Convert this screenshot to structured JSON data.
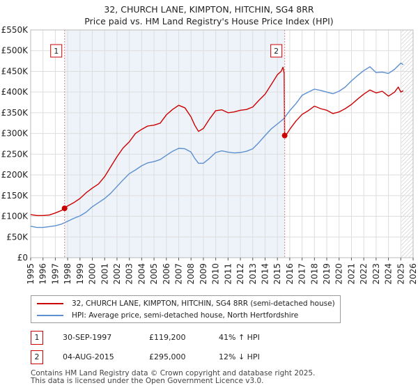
{
  "header": {
    "title_line1": "32, CHURCH LANE, KIMPTON, HITCHIN, SG4 8RR",
    "title_line2": "Price paid vs. HM Land Registry's House Price Index (HPI)"
  },
  "chart_data": {
    "type": "line",
    "title": "32, CHURCH LANE, KIMPTON, HITCHIN, SG4 8RR — Price paid vs. HM Land Registry's House Price Index (HPI)",
    "xlim": [
      1995,
      2026
    ],
    "ylim": [
      0,
      550000
    ],
    "x_ticks": [
      1995,
      1996,
      1997,
      1998,
      1999,
      2000,
      2001,
      2002,
      2003,
      2004,
      2005,
      2006,
      2007,
      2008,
      2009,
      2010,
      2011,
      2012,
      2013,
      2014,
      2015,
      2016,
      2017,
      2018,
      2019,
      2020,
      2021,
      2022,
      2023,
      2024,
      2025,
      2026
    ],
    "y_ticks": [
      {
        "value": 0,
        "label": "£0"
      },
      {
        "value": 50000,
        "label": "£50K"
      },
      {
        "value": 100000,
        "label": "£100K"
      },
      {
        "value": 150000,
        "label": "£150K"
      },
      {
        "value": 200000,
        "label": "£200K"
      },
      {
        "value": 250000,
        "label": "£250K"
      },
      {
        "value": 300000,
        "label": "£300K"
      },
      {
        "value": 350000,
        "label": "£350K"
      },
      {
        "value": 400000,
        "label": "£400K"
      },
      {
        "value": 450000,
        "label": "£450K"
      },
      {
        "value": 500000,
        "label": "£500K"
      },
      {
        "value": 550000,
        "label": "£550K"
      }
    ],
    "grid": true,
    "colors": {
      "property": "#cc0000",
      "hpi": "#5b8fd0",
      "band": "#eef3fa",
      "marker_line": "#e08080",
      "hatch": "#bbbbbb"
    },
    "future_hatch_from": 2025.05,
    "series": [
      {
        "name": "32, CHURCH LANE, KIMPTON, HITCHIN, SG4 8RR (semi-detached house)",
        "key": "property",
        "x": [
          1995.0,
          1995.5,
          1996.0,
          1996.5,
          1997.0,
          1997.5,
          1997.75,
          1998.0,
          1998.5,
          1999.0,
          1999.5,
          2000.0,
          2000.5,
          2001.0,
          2001.5,
          2002.0,
          2002.5,
          2003.0,
          2003.5,
          2004.0,
          2004.5,
          2005.0,
          2005.5,
          2006.0,
          2006.5,
          2007.0,
          2007.5,
          2008.0,
          2008.3,
          2008.6,
          2009.0,
          2009.5,
          2010.0,
          2010.5,
          2011.0,
          2011.5,
          2012.0,
          2012.5,
          2013.0,
          2013.5,
          2014.0,
          2014.5,
          2015.0,
          2015.3,
          2015.45,
          2015.55,
          2015.59,
          2015.62,
          2015.7,
          2016.0,
          2016.5,
          2017.0,
          2017.5,
          2018.0,
          2018.5,
          2019.0,
          2019.5,
          2020.0,
          2020.5,
          2021.0,
          2021.5,
          2022.0,
          2022.5,
          2023.0,
          2023.5,
          2024.0,
          2024.5,
          2024.8,
          2025.0,
          2025.2
        ],
        "values": [
          104000,
          102000,
          102000,
          103000,
          108000,
          114000,
          119200,
          125000,
          133000,
          143000,
          157000,
          168000,
          178000,
          196000,
          220000,
          244000,
          265000,
          280000,
          300000,
          310000,
          318000,
          320000,
          325000,
          345000,
          358000,
          368000,
          362000,
          340000,
          320000,
          305000,
          312000,
          335000,
          355000,
          357000,
          350000,
          352000,
          356000,
          358000,
          364000,
          380000,
          395000,
          418000,
          442000,
          450000,
          460000,
          445000,
          295000,
          292000,
          296000,
          310000,
          330000,
          346000,
          355000,
          366000,
          360000,
          356000,
          348000,
          352000,
          360000,
          370000,
          383000,
          395000,
          405000,
          398000,
          402000,
          390000,
          400000,
          412000,
          400000,
          403000
        ]
      },
      {
        "name": "HPI: Average price, semi-detached house, North Hertfordshire",
        "key": "hpi",
        "x": [
          1995.0,
          1995.5,
          1996.0,
          1996.5,
          1997.0,
          1997.5,
          1998.0,
          1998.5,
          1999.0,
          1999.5,
          2000.0,
          2000.5,
          2001.0,
          2001.5,
          2002.0,
          2002.5,
          2003.0,
          2003.5,
          2004.0,
          2004.5,
          2005.0,
          2005.5,
          2006.0,
          2006.5,
          2007.0,
          2007.5,
          2008.0,
          2008.3,
          2008.6,
          2009.0,
          2009.5,
          2010.0,
          2010.5,
          2011.0,
          2011.5,
          2012.0,
          2012.5,
          2013.0,
          2013.5,
          2014.0,
          2014.5,
          2015.0,
          2015.5,
          2016.0,
          2016.5,
          2017.0,
          2017.5,
          2018.0,
          2018.5,
          2019.0,
          2019.5,
          2020.0,
          2020.5,
          2021.0,
          2021.5,
          2022.0,
          2022.5,
          2023.0,
          2023.5,
          2024.0,
          2024.5,
          2025.0,
          2025.2
        ],
        "values": [
          76000,
          73000,
          73000,
          75000,
          77000,
          81000,
          88000,
          95000,
          101000,
          110000,
          123000,
          133000,
          143000,
          156000,
          172000,
          188000,
          203000,
          212000,
          222000,
          229000,
          232000,
          237000,
          247000,
          257000,
          264000,
          263000,
          255000,
          240000,
          228000,
          228000,
          240000,
          254000,
          258000,
          255000,
          253000,
          254000,
          257000,
          263000,
          278000,
          295000,
          311000,
          323000,
          335000,
          355000,
          372000,
          392000,
          400000,
          407000,
          404000,
          400000,
          396000,
          402000,
          412000,
          427000,
          440000,
          452000,
          461000,
          447000,
          448000,
          445000,
          455000,
          470000,
          466000
        ]
      }
    ],
    "annotations": [
      {
        "label": "1",
        "x": 1997.75,
        "y": 119200
      },
      {
        "label": "2",
        "x": 2015.59,
        "y": 295000
      }
    ]
  },
  "legend": {
    "property_label": "32, CHURCH LANE, KIMPTON, HITCHIN, SG4 8RR (semi-detached house)",
    "hpi_label": "HPI: Average price, semi-detached house, North Hertfordshire"
  },
  "transactions": [
    {
      "num": "1",
      "date": "30-SEP-1997",
      "price": "£119,200",
      "hpi": "41% ↑ HPI"
    },
    {
      "num": "2",
      "date": "04-AUG-2015",
      "price": "£295,000",
      "hpi": "12% ↓ HPI"
    }
  ],
  "footer": {
    "line1": "Contains HM Land Registry data © Crown copyright and database right 2025.",
    "line2": "This data is licensed under the Open Government Licence v3.0."
  }
}
